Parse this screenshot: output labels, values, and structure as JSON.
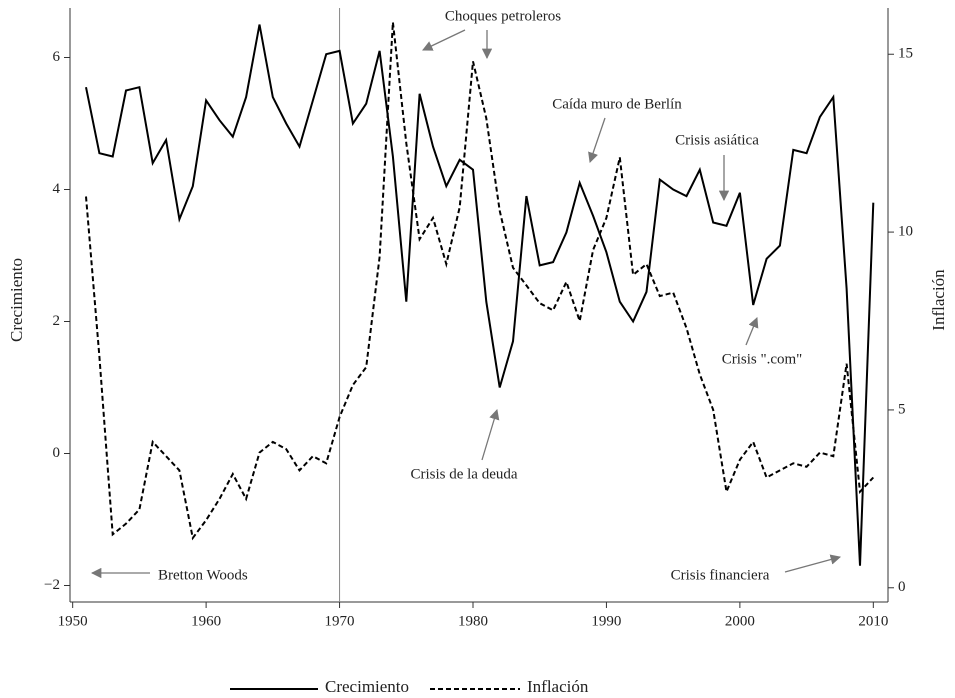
{
  "chart_data": {
    "type": "line",
    "y_label": "Crecimiento",
    "y2_label": "Inflación",
    "x": [
      1951,
      1952,
      1953,
      1954,
      1955,
      1956,
      1957,
      1958,
      1959,
      1960,
      1961,
      1962,
      1963,
      1964,
      1965,
      1966,
      1967,
      1968,
      1969,
      1970,
      1971,
      1972,
      1973,
      1974,
      1975,
      1976,
      1977,
      1978,
      1979,
      1980,
      1981,
      1982,
      1983,
      1984,
      1985,
      1986,
      1987,
      1988,
      1989,
      1990,
      1991,
      1992,
      1993,
      1994,
      1995,
      1996,
      1997,
      1998,
      1999,
      2000,
      2001,
      2002,
      2003,
      2004,
      2005,
      2006,
      2007,
      2008,
      2009,
      2010
    ],
    "series": [
      {
        "name": "Crecimiento",
        "color": "#000000",
        "line_style": "solid",
        "axis": "y",
        "values": [
          5.55,
          4.55,
          4.5,
          5.5,
          5.55,
          4.4,
          4.75,
          3.55,
          4.05,
          5.35,
          5.05,
          4.8,
          5.4,
          6.5,
          5.4,
          5.0,
          4.65,
          5.35,
          6.05,
          6.1,
          5.0,
          5.3,
          6.1,
          4.5,
          2.3,
          5.45,
          4.65,
          4.05,
          4.45,
          4.3,
          2.3,
          1.0,
          1.7,
          3.9,
          2.85,
          2.9,
          3.35,
          4.1,
          3.6,
          3.05,
          2.3,
          2.0,
          2.45,
          4.15,
          4.0,
          3.9,
          4.3,
          3.5,
          3.45,
          3.95,
          2.25,
          2.95,
          3.15,
          4.6,
          4.55,
          5.1,
          5.4,
          2.5,
          -1.7,
          3.8
        ]
      },
      {
        "name": "Inflación",
        "color": "#000000",
        "line_style": "dashed",
        "axis": "y2",
        "values": [
          11,
          6.5,
          1.5,
          1.8,
          2.2,
          4.1,
          3.7,
          3.3,
          1.4,
          1.9,
          2.5,
          3.2,
          2.5,
          3.8,
          4.1,
          3.9,
          3.3,
          3.7,
          3.5,
          4.8,
          5.7,
          6.2,
          9.3,
          15.9,
          12.5,
          9.8,
          10.4,
          9.1,
          10.7,
          14.8,
          13.2,
          10.6,
          9.0,
          8.5,
          8.0,
          7.8,
          8.6,
          7.5,
          9.5,
          10.4,
          12.1,
          8.8,
          9.1,
          8.2,
          8.3,
          7.3,
          6.0,
          5.0,
          2.7,
          3.6,
          4.1,
          3.1,
          3.3,
          3.5,
          3.4,
          3.8,
          3.7,
          6.3,
          2.7,
          3.1
        ]
      }
    ],
    "xlim": [
      1949.8,
      2011.1
    ],
    "xticks": [
      1950,
      1960,
      1970,
      1980,
      1990,
      2000,
      2010
    ],
    "ylim": [
      -2.25,
      6.75
    ],
    "yticks": [
      {
        "value": -2,
        "label": "−2"
      },
      0,
      2,
      4,
      6
    ],
    "y2lim": [
      -0.4,
      16.3
    ],
    "y2ticks": [
      0,
      5,
      10,
      15
    ],
    "vline": 1970,
    "grid": false,
    "legend": "bottom",
    "annotations": [
      "Bretton Woods",
      "Choques petroleros",
      "Caída muro de Berlín",
      "Crisis asiática",
      "Crisis \".com\"",
      "Crisis de la deuda",
      "Crisis financiera"
    ]
  }
}
